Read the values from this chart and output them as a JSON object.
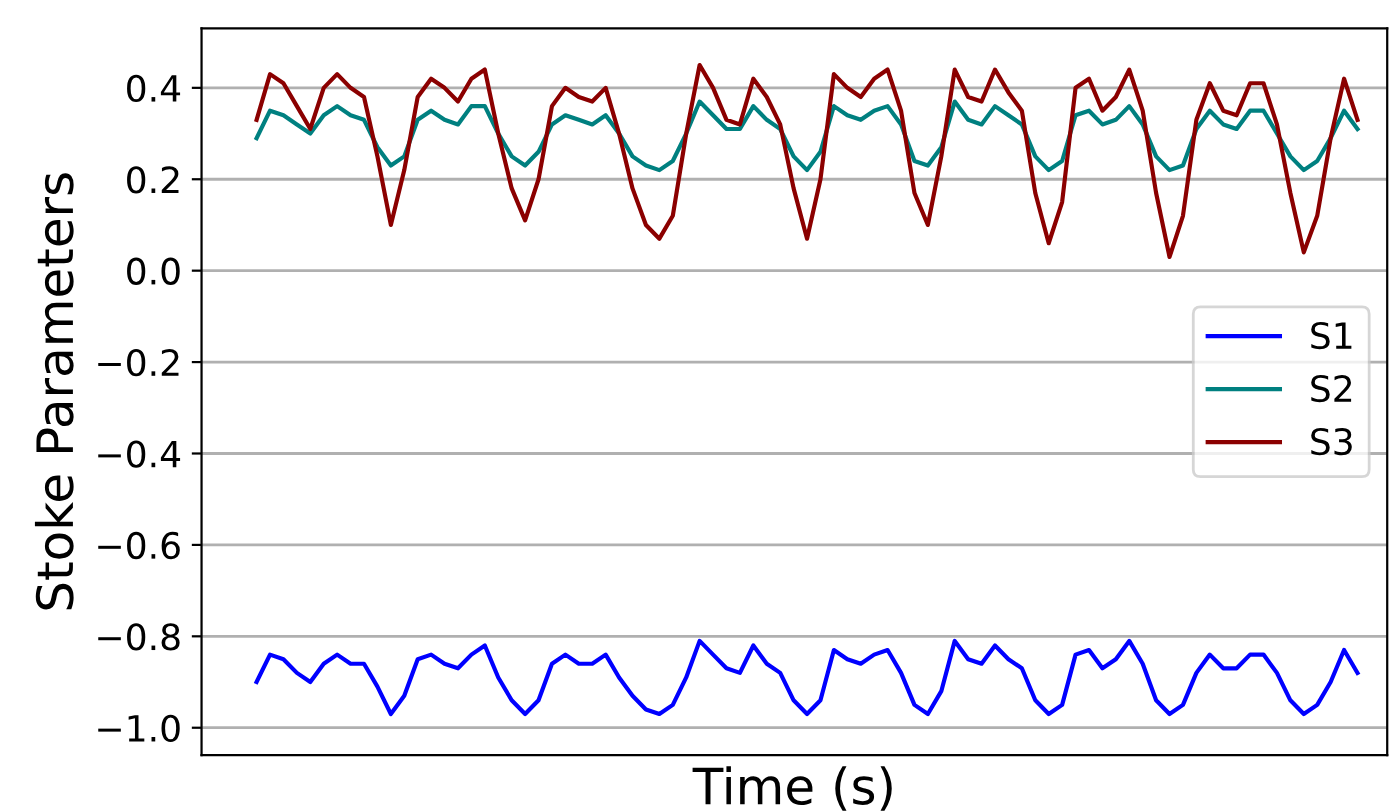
{
  "chart_data": {
    "type": "line",
    "xlabel": "Time (s)",
    "ylabel": "Stoke Parameters",
    "categories": [
      null,
      null,
      null,
      null,
      null,
      null,
      null,
      null,
      null,
      null,
      null,
      null,
      null,
      null,
      null,
      null,
      null,
      null,
      null,
      null,
      null,
      null,
      null,
      null,
      null,
      null,
      null,
      null,
      null,
      null,
      null,
      null,
      null,
      null,
      null,
      null,
      null,
      null,
      null,
      null,
      null,
      null,
      null,
      null,
      null,
      null,
      null,
      null,
      null,
      null,
      null,
      null,
      null,
      null,
      null,
      null,
      null,
      null,
      null,
      null,
      null,
      null,
      null,
      null,
      null,
      null,
      null,
      null,
      null,
      null,
      null,
      null,
      null,
      null,
      null,
      null,
      null,
      null,
      null,
      null,
      null,
      null,
      null
    ],
    "series": [
      {
        "name": "S1",
        "color": "#0000ff",
        "values": [
          -0.9,
          -0.84,
          -0.85,
          -0.88,
          -0.9,
          -0.86,
          -0.84,
          -0.86,
          -0.86,
          -0.91,
          -0.97,
          -0.93,
          -0.85,
          -0.84,
          -0.86,
          -0.87,
          -0.84,
          -0.82,
          -0.89,
          -0.94,
          -0.97,
          -0.94,
          -0.86,
          -0.84,
          -0.86,
          -0.86,
          -0.84,
          -0.89,
          -0.93,
          -0.96,
          -0.97,
          -0.95,
          -0.89,
          -0.81,
          -0.84,
          -0.87,
          -0.88,
          -0.82,
          -0.86,
          -0.88,
          -0.94,
          -0.97,
          -0.94,
          -0.83,
          -0.85,
          -0.86,
          -0.84,
          -0.83,
          -0.88,
          -0.95,
          -0.97,
          -0.92,
          -0.81,
          -0.85,
          -0.86,
          -0.82,
          -0.85,
          -0.87,
          -0.94,
          -0.97,
          -0.95,
          -0.84,
          -0.83,
          -0.87,
          -0.85,
          -0.81,
          -0.86,
          -0.94,
          -0.97,
          -0.95,
          -0.88,
          -0.84,
          -0.87,
          -0.87,
          -0.84,
          -0.84,
          -0.88,
          -0.94,
          -0.97,
          -0.95,
          -0.9,
          -0.83,
          -0.88
        ]
      },
      {
        "name": "S2",
        "color": "#008080",
        "values": [
          0.29,
          0.35,
          0.34,
          0.32,
          0.3,
          0.34,
          0.36,
          0.34,
          0.33,
          0.27,
          0.23,
          0.25,
          0.33,
          0.35,
          0.33,
          0.32,
          0.36,
          0.36,
          0.3,
          0.25,
          0.23,
          0.26,
          0.32,
          0.34,
          0.33,
          0.32,
          0.34,
          0.3,
          0.25,
          0.23,
          0.22,
          0.24,
          0.3,
          0.37,
          0.34,
          0.31,
          0.31,
          0.36,
          0.33,
          0.31,
          0.25,
          0.22,
          0.26,
          0.36,
          0.34,
          0.33,
          0.35,
          0.36,
          0.32,
          0.24,
          0.23,
          0.27,
          0.37,
          0.33,
          0.32,
          0.36,
          0.34,
          0.32,
          0.25,
          0.22,
          0.24,
          0.34,
          0.35,
          0.32,
          0.33,
          0.36,
          0.32,
          0.25,
          0.22,
          0.23,
          0.31,
          0.35,
          0.32,
          0.31,
          0.35,
          0.35,
          0.3,
          0.25,
          0.22,
          0.24,
          0.29,
          0.35,
          0.31
        ]
      },
      {
        "name": "S3",
        "color": "#8b0000",
        "values": [
          0.33,
          0.43,
          0.41,
          0.36,
          0.31,
          0.4,
          0.43,
          0.4,
          0.38,
          0.25,
          0.1,
          0.22,
          0.38,
          0.42,
          0.4,
          0.37,
          0.42,
          0.44,
          0.3,
          0.18,
          0.11,
          0.2,
          0.36,
          0.4,
          0.38,
          0.37,
          0.4,
          0.3,
          0.18,
          0.1,
          0.07,
          0.12,
          0.3,
          0.45,
          0.4,
          0.33,
          0.32,
          0.42,
          0.38,
          0.32,
          0.18,
          0.07,
          0.2,
          0.43,
          0.4,
          0.38,
          0.42,
          0.44,
          0.35,
          0.17,
          0.1,
          0.25,
          0.44,
          0.38,
          0.37,
          0.44,
          0.39,
          0.35,
          0.17,
          0.06,
          0.15,
          0.4,
          0.42,
          0.35,
          0.38,
          0.44,
          0.35,
          0.17,
          0.03,
          0.12,
          0.33,
          0.41,
          0.35,
          0.34,
          0.41,
          0.41,
          0.32,
          0.17,
          0.04,
          0.12,
          0.29,
          0.42,
          0.33
        ]
      }
    ],
    "ylim": [
      -1.06,
      0.53
    ],
    "yticks": [
      {
        "value": -1.0,
        "label": "−1.0"
      },
      {
        "value": -0.8,
        "label": "−0.8"
      },
      {
        "value": -0.6,
        "label": "−0.6"
      },
      {
        "value": -0.4,
        "label": "−0.4"
      },
      {
        "value": -0.2,
        "label": "−0.2"
      },
      {
        "value": 0.0,
        "label": "0.0"
      },
      {
        "value": 0.2,
        "label": "0.2"
      },
      {
        "value": 0.4,
        "label": "0.4"
      }
    ],
    "tick_labels": "y",
    "grid": "y",
    "legend": "center right",
    "line_style": "solid",
    "marker": "none"
  }
}
